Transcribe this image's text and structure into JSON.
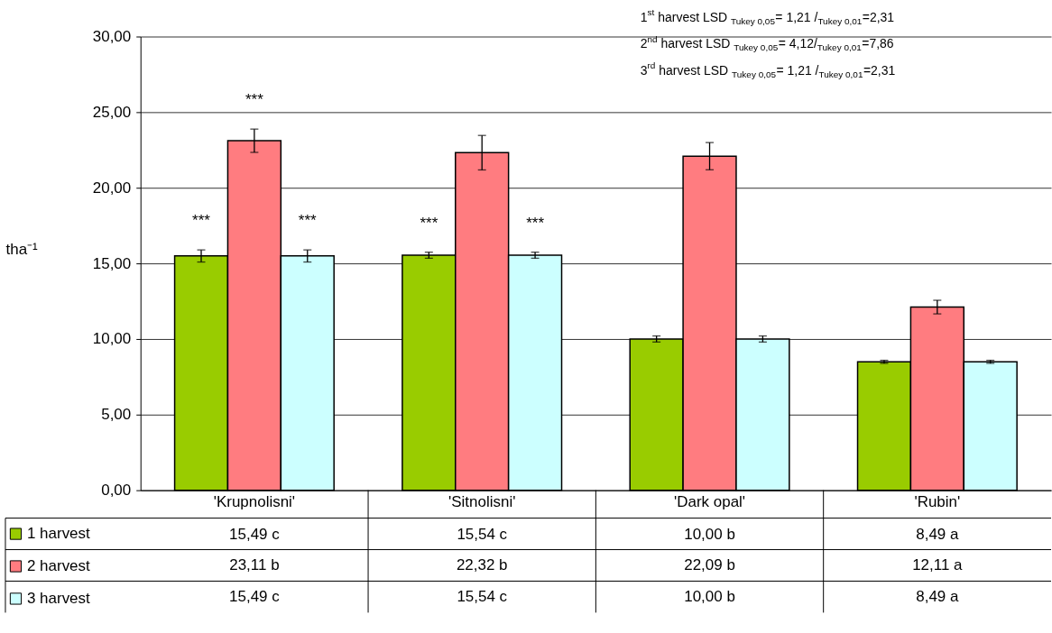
{
  "chart_data": {
    "type": "bar",
    "ylabel": "tha⁻¹",
    "categories": [
      "'Krupnolisni'",
      "'Sitnolisni'",
      "'Dark opal'",
      "'Rubin'"
    ],
    "series": [
      {
        "name": "1 harvest",
        "color": "#99cc00",
        "values": [
          15.49,
          15.54,
          10.0,
          8.49
        ],
        "errors": [
          0.4,
          0.2,
          0.2,
          0.1
        ],
        "value_labels": [
          "15,49    c",
          "15,54    c",
          "10,00    b",
          "8,49    a"
        ]
      },
      {
        "name": "2 harvest",
        "color": "#ff7c80",
        "values": [
          23.11,
          22.32,
          22.09,
          12.11
        ],
        "errors": [
          0.77,
          1.14,
          0.9,
          0.45
        ],
        "value_labels": [
          "23,11    b",
          "22,32    b",
          "22,09    b",
          "12,11    a"
        ]
      },
      {
        "name": "3 harvest",
        "color": "#ccffff",
        "values": [
          15.49,
          15.54,
          10.0,
          8.49
        ],
        "errors": [
          0.4,
          0.2,
          0.2,
          0.1
        ],
        "value_labels": [
          "15,49    c",
          "15,54    c",
          "10,00    b",
          "8,49    a"
        ]
      }
    ],
    "ylim": [
      0,
      30
    ],
    "yticks": [
      {
        "value": 0,
        "label": "0,00"
      },
      {
        "value": 5,
        "label": "5,00"
      },
      {
        "value": 10,
        "label": "10,00"
      },
      {
        "value": 15,
        "label": "15,00"
      },
      {
        "value": 20,
        "label": "20,00"
      },
      {
        "value": 25,
        "label": "25,00"
      },
      {
        "value": 30,
        "label": "30,00"
      }
    ],
    "grid": "y",
    "legend": "bottom left",
    "annotations": [
      "1$^{st}$ harvest LSD $_{Tukey 0,05}$= 1,21 /$_{Tukey 0,01}$=2,31",
      "2$^{nd}$ harvest LSD $_{Tukey 0,05}$= 4,12/$_{Tukey 0,01}$=7,86",
      "3$^{rd}$ harvest LSD $_{Tukey 0,05}$= 1,21 /$_{Tukey 0,01}$=2,31",
      "***",
      "***",
      "***",
      "***",
      {
        "text": "***",
        "x": "'Krupnolisni'",
        "y": 23.11
      }
    ]
  }
}
